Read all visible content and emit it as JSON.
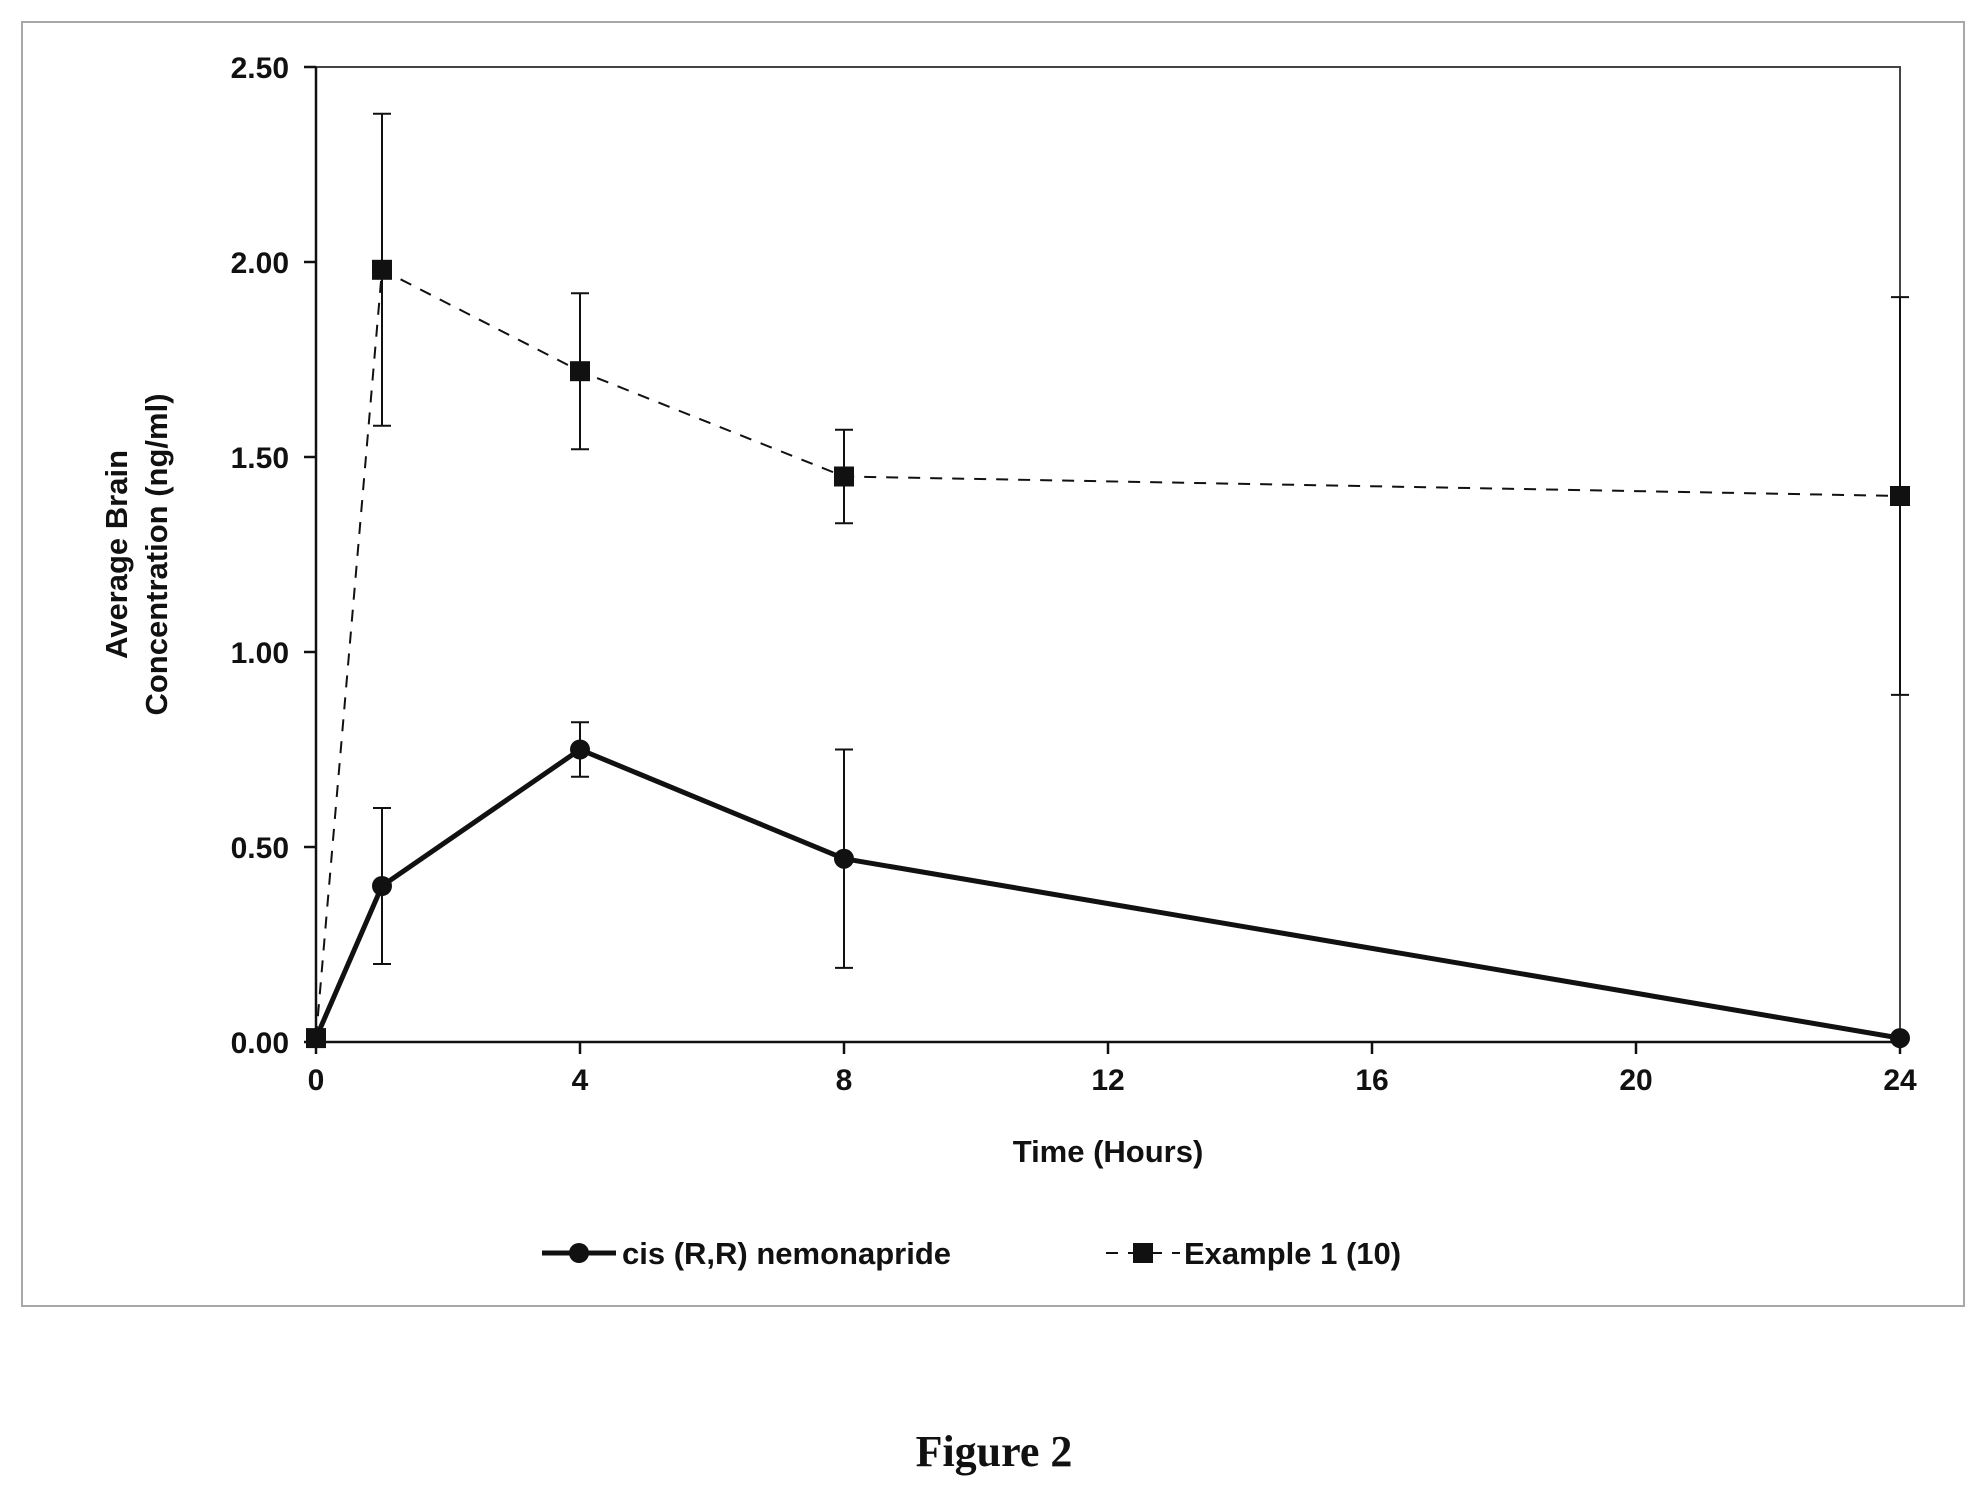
{
  "chart_data": {
    "type": "line",
    "xlabel": "Time (Hours)",
    "ylabel_lines": [
      "Average Brain",
      "Concentration (ng/ml)"
    ],
    "xlim": [
      0,
      24
    ],
    "ylim": [
      0,
      2.5
    ],
    "xticks": [
      0,
      4,
      8,
      12,
      16,
      20,
      24
    ],
    "yticks": [
      "0.00",
      "0.50",
      "1.00",
      "1.50",
      "2.00",
      "2.50"
    ],
    "grid": false,
    "legend_position": "bottom",
    "series": [
      {
        "name": "cis (R,R) nemonapride",
        "line_style": "solid",
        "marker": "circle",
        "color": "#111111",
        "x": [
          0,
          1,
          4,
          8,
          24
        ],
        "y": [
          0.01,
          0.4,
          0.75,
          0.47,
          0.01
        ],
        "error": [
          0.0,
          0.2,
          0.07,
          0.28,
          0.0
        ]
      },
      {
        "name": "Example 1 (10)",
        "line_style": "dashed",
        "marker": "square",
        "color": "#111111",
        "x": [
          0,
          1,
          4,
          8,
          24
        ],
        "y": [
          0.01,
          1.98,
          1.72,
          1.45,
          1.4
        ],
        "error": [
          0.0,
          0.4,
          0.2,
          0.12,
          0.51
        ]
      }
    ]
  },
  "caption": "Figure 2"
}
